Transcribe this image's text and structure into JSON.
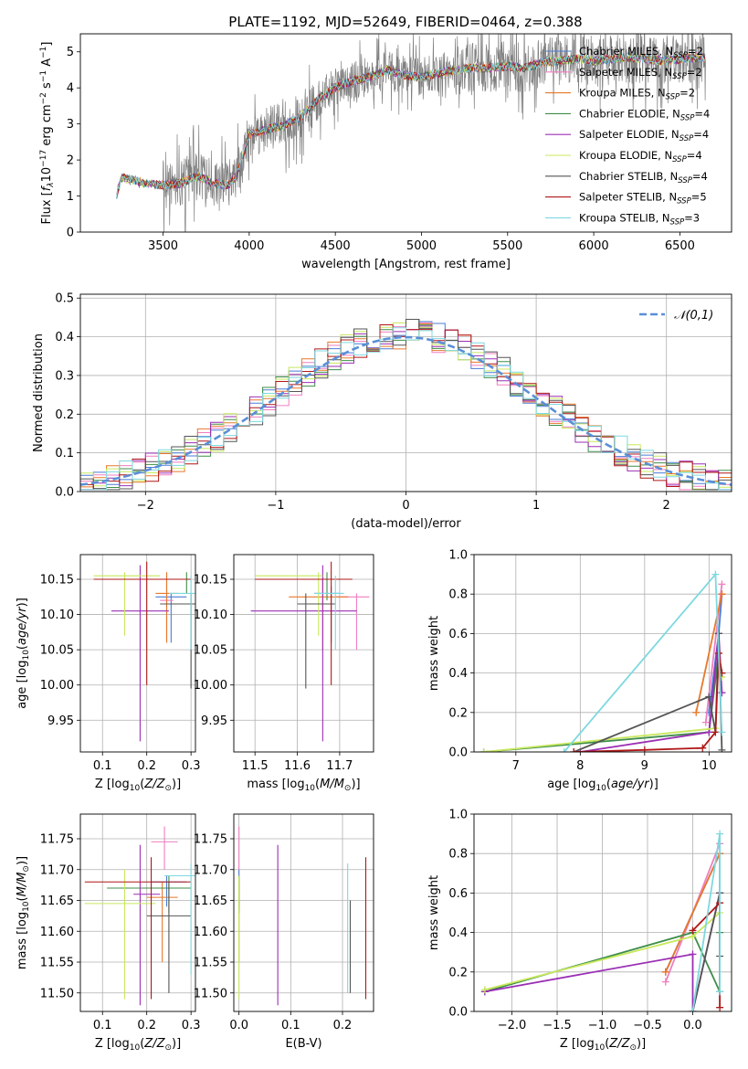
{
  "figure": {
    "title": "PLATE=1192, MJD=52649, FIBERID=0464, z=0.388"
  },
  "models": [
    {
      "name": "Chabrier MILES",
      "nssp": 2,
      "color": "#4a7cd6"
    },
    {
      "name": "Salpeter MILES",
      "nssp": 2,
      "color": "#f07ec0"
    },
    {
      "name": "Kroupa MILES",
      "nssp": 2,
      "color": "#e8782a"
    },
    {
      "name": "Chabrier ELODIE",
      "nssp": 4,
      "color": "#3e8d49"
    },
    {
      "name": "Salpeter ELODIE",
      "nssp": 4,
      "color": "#9b2fb5"
    },
    {
      "name": "Kroupa ELODIE",
      "nssp": 4,
      "color": "#c8e85e"
    },
    {
      "name": "Chabrier STELIB",
      "nssp": 4,
      "color": "#555555"
    },
    {
      "name": "Salpeter STELIB",
      "nssp": 5,
      "color": "#b01717"
    },
    {
      "name": "Kroupa STELIB",
      "nssp": 3,
      "color": "#7ed8e0"
    }
  ],
  "chart_data": [
    {
      "id": "spectrum",
      "type": "line",
      "xlabel": "wavelength [Angstrom, rest frame]",
      "ylabel": "Flux [f_λ 10^-17 erg cm^-2 s^-1 A^-1]",
      "xlim": [
        3020,
        6800
      ],
      "ylim": [
        0,
        5.5
      ],
      "xticks": [
        3500,
        4000,
        4500,
        5000,
        5500,
        6000,
        6500
      ],
      "yticks": [
        0,
        1,
        2,
        3,
        4,
        5
      ],
      "data_color": "#808080",
      "continuum": [
        [
          3230,
          1.05
        ],
        [
          3260,
          1.5
        ],
        [
          3320,
          1.45
        ],
        [
          3400,
          1.35
        ],
        [
          3500,
          1.3
        ],
        [
          3600,
          1.35
        ],
        [
          3700,
          1.55
        ],
        [
          3800,
          1.35
        ],
        [
          3880,
          1.3
        ],
        [
          3930,
          1.6
        ],
        [
          4000,
          2.7
        ],
        [
          4100,
          2.85
        ],
        [
          4200,
          2.95
        ],
        [
          4300,
          3.2
        ],
        [
          4400,
          3.7
        ],
        [
          4500,
          4.0
        ],
        [
          4600,
          4.2
        ],
        [
          4700,
          4.3
        ],
        [
          4800,
          4.5
        ],
        [
          4900,
          4.35
        ],
        [
          5000,
          4.3
        ],
        [
          5100,
          4.4
        ],
        [
          5200,
          4.5
        ],
        [
          5300,
          4.55
        ],
        [
          5400,
          4.55
        ],
        [
          5500,
          4.6
        ],
        [
          5600,
          4.55
        ],
        [
          5700,
          4.7
        ],
        [
          5800,
          4.75
        ],
        [
          5900,
          4.8
        ],
        [
          6000,
          4.75
        ],
        [
          6100,
          4.8
        ],
        [
          6200,
          4.85
        ],
        [
          6300,
          4.8
        ],
        [
          6400,
          4.75
        ],
        [
          6500,
          4.8
        ],
        [
          6600,
          4.85
        ]
      ],
      "legend_position": "upper-right"
    },
    {
      "id": "residuals",
      "type": "bar",
      "xlabel": "(data-model)/error",
      "ylabel": "Normed distribution",
      "xlim": [
        -2.5,
        2.5
      ],
      "ylim": [
        0,
        0.51
      ],
      "xticks": [
        -2,
        -1,
        0,
        1,
        2
      ],
      "yticks": [
        0.0,
        0.1,
        0.2,
        0.3,
        0.4,
        0.5
      ],
      "bin_width": 0.1,
      "normal_label": "𝒩(0,1)",
      "normal_color": "#5a8fd8",
      "legend_position": "upper-right"
    },
    {
      "id": "age-vs-Z",
      "type": "scatter",
      "xlabel": "Z [log10(Z/Z⊙)]",
      "ylabel": "age [log10(age/yr)]",
      "xlim": [
        0.05,
        0.31
      ],
      "ylim": [
        9.905,
        10.185
      ],
      "xticks": [
        0.1,
        0.2,
        0.3
      ],
      "yticks": [
        9.95,
        10.0,
        10.05,
        10.1,
        10.15
      ],
      "points": [
        {
          "m": 0,
          "x": 0.255,
          "y": 10.125,
          "xerr": [
            0.22,
            0.29
          ],
          "yerr": [
            10.06,
            10.13
          ]
        },
        {
          "m": 1,
          "x": 0.245,
          "y": 10.12,
          "xerr": [
            0.23,
            0.26
          ],
          "yerr": [
            10.06,
            10.16
          ]
        },
        {
          "m": 2,
          "x": 0.245,
          "y": 10.13,
          "xerr": [
            0.22,
            0.27
          ],
          "yerr": [
            10.06,
            10.16
          ]
        },
        {
          "m": 3,
          "x": 0.29,
          "y": 10.15,
          "xerr": [
            0.26,
            0.3
          ],
          "yerr": [
            10.13,
            10.16
          ]
        },
        {
          "m": 4,
          "x": 0.185,
          "y": 10.105,
          "xerr": [
            0.12,
            0.25
          ],
          "yerr": [
            9.92,
            10.17
          ]
        },
        {
          "m": 5,
          "x": 0.15,
          "y": 10.155,
          "xerr": [
            0.08,
            0.23
          ],
          "yerr": [
            10.07,
            10.16
          ]
        },
        {
          "m": 6,
          "x": 0.3,
          "y": 10.115,
          "xerr": [
            0.23,
            0.31
          ],
          "yerr": [
            9.995,
            10.13
          ]
        },
        {
          "m": 7,
          "x": 0.2,
          "y": 10.15,
          "xerr": [
            0.08,
            0.3
          ],
          "yerr": [
            10.0,
            10.175
          ]
        },
        {
          "m": 8,
          "x": 0.3,
          "y": 10.13,
          "xerr": [
            0.25,
            0.31
          ],
          "yerr": [
            10.05,
            10.155
          ]
        }
      ]
    },
    {
      "id": "age-vs-mass",
      "type": "scatter",
      "xlabel": "mass [log10(M/M⊙)]",
      "ylabel": "",
      "xlim": [
        11.45,
        11.78
      ],
      "ylim": [
        9.905,
        10.185
      ],
      "xticks": [
        11.5,
        11.6,
        11.7
      ],
      "yticks": [
        9.95,
        10.0,
        10.05,
        10.1,
        10.15
      ],
      "points": [
        {
          "m": 0,
          "x": 11.68,
          "y": 10.13,
          "xerr": [
            11.64,
            11.7
          ],
          "yerr": [
            10.06,
            10.14
          ]
        },
        {
          "m": 1,
          "x": 11.74,
          "y": 10.125,
          "xerr": [
            11.69,
            11.77
          ],
          "yerr": [
            10.05,
            10.13
          ]
        },
        {
          "m": 2,
          "x": 11.66,
          "y": 10.125,
          "xerr": [
            11.58,
            11.72
          ],
          "yerr": [
            10.05,
            10.15
          ]
        },
        {
          "m": 3,
          "x": 11.67,
          "y": 10.15,
          "xerr": [
            11.64,
            11.69
          ],
          "yerr": [
            10.12,
            10.16
          ]
        },
        {
          "m": 4,
          "x": 11.66,
          "y": 10.105,
          "xerr": [
            11.49,
            11.74
          ],
          "yerr": [
            9.92,
            10.17
          ]
        },
        {
          "m": 5,
          "x": 11.65,
          "y": 10.155,
          "xerr": [
            11.5,
            11.66
          ],
          "yerr": [
            10.07,
            10.16
          ]
        },
        {
          "m": 6,
          "x": 11.62,
          "y": 10.115,
          "xerr": [
            11.6,
            11.69
          ],
          "yerr": [
            9.995,
            10.13
          ]
        },
        {
          "m": 7,
          "x": 11.68,
          "y": 10.15,
          "xerr": [
            11.5,
            11.73
          ],
          "yerr": [
            10.0,
            10.175
          ]
        },
        {
          "m": 8,
          "x": 11.69,
          "y": 10.13,
          "xerr": [
            11.64,
            11.71
          ],
          "yerr": [
            10.05,
            10.155
          ]
        }
      ]
    },
    {
      "id": "weight-vs-age",
      "type": "line",
      "xlabel": "age [log10(age/yr)]",
      "ylabel": "mass weight",
      "xlim": [
        6.35,
        10.35
      ],
      "ylim": [
        0,
        1.0
      ],
      "xticks": [
        7,
        8,
        9,
        10
      ],
      "yticks": [
        0.0,
        0.2,
        0.4,
        0.6,
        0.8,
        1.0
      ],
      "series": [
        {
          "m": 0,
          "points": [
            [
              10.0,
              0.2
            ],
            [
              10.15,
              0.6
            ],
            [
              10.2,
              0.8
            ]
          ]
        },
        {
          "m": 1,
          "points": [
            [
              9.95,
              0.15
            ],
            [
              10.2,
              0.85
            ]
          ]
        },
        {
          "m": 2,
          "points": [
            [
              9.8,
              0.2
            ],
            [
              10.2,
              0.8
            ]
          ]
        },
        {
          "m": 3,
          "points": [
            [
              6.5,
              0.0
            ],
            [
              10.0,
              0.1
            ],
            [
              10.15,
              0.5
            ],
            [
              10.2,
              0.4
            ]
          ]
        },
        {
          "m": 4,
          "points": [
            [
              8.0,
              0.0
            ],
            [
              10.0,
              0.1
            ],
            [
              10.15,
              0.6
            ],
            [
              10.2,
              0.3
            ]
          ]
        },
        {
          "m": 5,
          "points": [
            [
              6.5,
              0.0
            ],
            [
              10.1,
              0.12
            ],
            [
              10.15,
              0.5
            ],
            [
              10.2,
              0.38
            ]
          ]
        },
        {
          "m": 6,
          "points": [
            [
              7.9,
              0.0
            ],
            [
              10.0,
              0.28
            ],
            [
              10.1,
              0.1
            ],
            [
              10.15,
              0.6
            ],
            [
              10.2,
              0.01
            ]
          ]
        },
        {
          "m": 7,
          "points": [
            [
              7.9,
              0.0
            ],
            [
              9.0,
              0.01
            ],
            [
              9.9,
              0.02
            ],
            [
              10.1,
              0.1
            ],
            [
              10.15,
              0.5
            ],
            [
              10.2,
              0.4
            ]
          ]
        },
        {
          "m": 8,
          "points": [
            [
              7.75,
              0.0
            ],
            [
              10.1,
              0.9
            ],
            [
              10.2,
              0.1
            ]
          ]
        }
      ]
    },
    {
      "id": "mass-vs-Z",
      "type": "scatter",
      "xlabel": "Z [log10(Z/Z⊙)]",
      "ylabel": "mass [log10(M/M⊙)]",
      "xlim": [
        0.05,
        0.31
      ],
      "ylim": [
        11.47,
        11.79
      ],
      "xticks": [
        0.1,
        0.2,
        0.3
      ],
      "yticks": [
        11.5,
        11.55,
        11.6,
        11.65,
        11.7,
        11.75
      ],
      "points": [
        {
          "m": 0,
          "x": 0.245,
          "y": 11.68,
          "xerr": [
            0.21,
            0.29
          ],
          "yerr": [
            11.64,
            11.69
          ]
        },
        {
          "m": 1,
          "x": 0.24,
          "y": 11.745,
          "xerr": [
            0.21,
            0.27
          ],
          "yerr": [
            11.7,
            11.77
          ]
        },
        {
          "m": 2,
          "x": 0.235,
          "y": 11.655,
          "xerr": [
            0.2,
            0.27
          ],
          "yerr": [
            11.55,
            11.68
          ]
        },
        {
          "m": 3,
          "x": 0.25,
          "y": 11.67,
          "xerr": [
            0.11,
            0.3
          ],
          "yerr": [
            11.63,
            11.69
          ]
        },
        {
          "m": 4,
          "x": 0.185,
          "y": 11.66,
          "xerr": [
            0.17,
            0.23
          ],
          "yerr": [
            11.48,
            11.74
          ]
        },
        {
          "m": 5,
          "x": 0.15,
          "y": 11.645,
          "xerr": [
            0.06,
            0.22
          ],
          "yerr": [
            11.49,
            11.7
          ]
        },
        {
          "m": 6,
          "x": 0.25,
          "y": 11.625,
          "xerr": [
            0.2,
            0.3
          ],
          "yerr": [
            11.5,
            11.68
          ]
        },
        {
          "m": 7,
          "x": 0.21,
          "y": 11.68,
          "xerr": [
            0.06,
            0.3
          ],
          "yerr": [
            11.49,
            11.72
          ]
        },
        {
          "m": 8,
          "x": 0.3,
          "y": 11.69,
          "xerr": [
            0.24,
            0.31
          ],
          "yerr": [
            11.53,
            11.71
          ]
        }
      ]
    },
    {
      "id": "mass-vs-EBV",
      "type": "scatter",
      "xlabel": "E(B-V)",
      "ylabel": "",
      "xlim": [
        -0.01,
        0.26
      ],
      "ylim": [
        11.47,
        11.79
      ],
      "xticks": [
        0.0,
        0.1,
        0.2
      ],
      "yticks": [
        11.5,
        11.55,
        11.6,
        11.65,
        11.7,
        11.75
      ],
      "points": [
        {
          "m": 0,
          "x": 0.0,
          "y": 11.68,
          "yerr": [
            11.64,
            11.7
          ]
        },
        {
          "m": 1,
          "x": 0.0,
          "y": 11.745,
          "yerr": [
            11.7,
            11.77
          ]
        },
        {
          "m": 2,
          "x": 0.0,
          "y": 11.655,
          "yerr": [
            11.55,
            11.68
          ]
        },
        {
          "m": 3,
          "x": 0.0,
          "y": 11.67,
          "yerr": [
            11.63,
            11.69
          ]
        },
        {
          "m": 4,
          "x": 0.075,
          "y": 11.66,
          "yerr": [
            11.48,
            11.74
          ]
        },
        {
          "m": 5,
          "x": 0.0,
          "y": 11.645,
          "yerr": [
            11.49,
            11.69
          ]
        },
        {
          "m": 6,
          "x": 0.215,
          "y": 11.625,
          "yerr": [
            11.5,
            11.65
          ]
        },
        {
          "m": 7,
          "x": 0.245,
          "y": 11.68,
          "yerr": [
            11.49,
            11.72
          ]
        },
        {
          "m": 8,
          "x": 0.21,
          "y": 11.69,
          "yerr": [
            11.5,
            11.71
          ]
        }
      ]
    },
    {
      "id": "weight-vs-Z",
      "type": "line",
      "xlabel": "Z [log10(Z/Z⊙)]",
      "ylabel": "mass weight",
      "xlim": [
        -2.42,
        0.43
      ],
      "ylim": [
        0,
        1.0
      ],
      "xticks": [
        -2.0,
        -1.5,
        -1.0,
        -0.5,
        0.0
      ],
      "yticks": [
        0.0,
        0.2,
        0.4,
        0.6,
        0.8,
        1.0
      ],
      "series": [
        {
          "m": 0,
          "points": [
            [
              -0.3,
              0.2
            ],
            [
              0.3,
              0.8
            ],
            [
              0.3,
              0.6
            ]
          ]
        },
        {
          "m": 1,
          "points": [
            [
              -0.3,
              0.15
            ],
            [
              0.3,
              0.85
            ]
          ]
        },
        {
          "m": 2,
          "points": [
            [
              -0.3,
              0.2
            ],
            [
              0.3,
              0.8
            ]
          ]
        },
        {
          "m": 3,
          "points": [
            [
              -2.3,
              0.1
            ],
            [
              0.0,
              0.4
            ],
            [
              0.3,
              0.1
            ],
            [
              0.3,
              0.4
            ]
          ]
        },
        {
          "m": 4,
          "points": [
            [
              -2.3,
              0.1
            ],
            [
              0.0,
              0.29
            ],
            [
              0.0,
              0.0
            ],
            [
              0.3,
              0.6
            ]
          ]
        },
        {
          "m": 5,
          "points": [
            [
              -2.3,
              0.11
            ],
            [
              0.0,
              0.38
            ],
            [
              0.3,
              0.5
            ]
          ]
        },
        {
          "m": 6,
          "points": [
            [
              0.0,
              0.0
            ],
            [
              0.3,
              0.6
            ],
            [
              0.3,
              0.28
            ]
          ]
        },
        {
          "m": 7,
          "points": [
            [
              0.0,
              0.41
            ],
            [
              0.3,
              0.55
            ],
            [
              0.3,
              0.02
            ]
          ]
        },
        {
          "m": 8,
          "points": [
            [
              0.0,
              0.0
            ],
            [
              0.3,
              0.9
            ],
            [
              0.3,
              0.1
            ]
          ]
        }
      ]
    }
  ]
}
